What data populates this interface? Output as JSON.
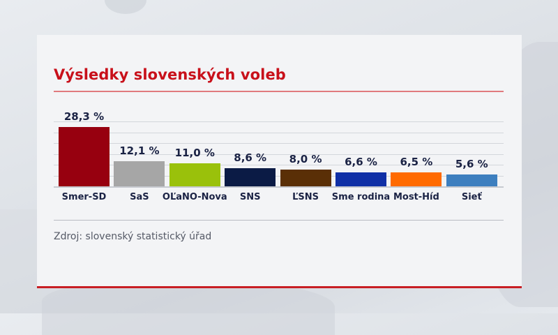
{
  "chart_data": {
    "type": "bar",
    "title": "Výsledky slovenských voleb",
    "categories": [
      "Smer-SD",
      "SaS",
      "OĽaNO-Nova",
      "SNS",
      "ĽSNS",
      "Sme rodina",
      "Most-Híd",
      "Sieť"
    ],
    "values": [
      28.3,
      12.1,
      11.0,
      8.6,
      8.0,
      6.6,
      6.5,
      5.6
    ],
    "value_labels": [
      "28,3 %",
      "12,1 %",
      "11,0 %",
      "8,6 %",
      "8,0 %",
      "6,6 %",
      "6,5 %",
      "5,6 %"
    ],
    "colors": [
      "#97000f",
      "#a6a6a6",
      "#9ac10b",
      "#0b1b45",
      "#5a2f06",
      "#0f2fa6",
      "#ff6a00",
      "#3d7fbf"
    ],
    "xlabel": "",
    "ylabel": "",
    "unit": "%",
    "ylim": [
      0,
      30
    ],
    "grid": true,
    "legend": "none",
    "source": "Zdroj: slovenský statistický úřad"
  },
  "header": {
    "title": "Výsledky slovenských voleb"
  },
  "footer": {
    "source": "Zdroj: slovenský statistický úřad"
  },
  "colors": {
    "title": "#c8101a",
    "accent_rule": "#c81e24",
    "text": "#1a2244"
  }
}
